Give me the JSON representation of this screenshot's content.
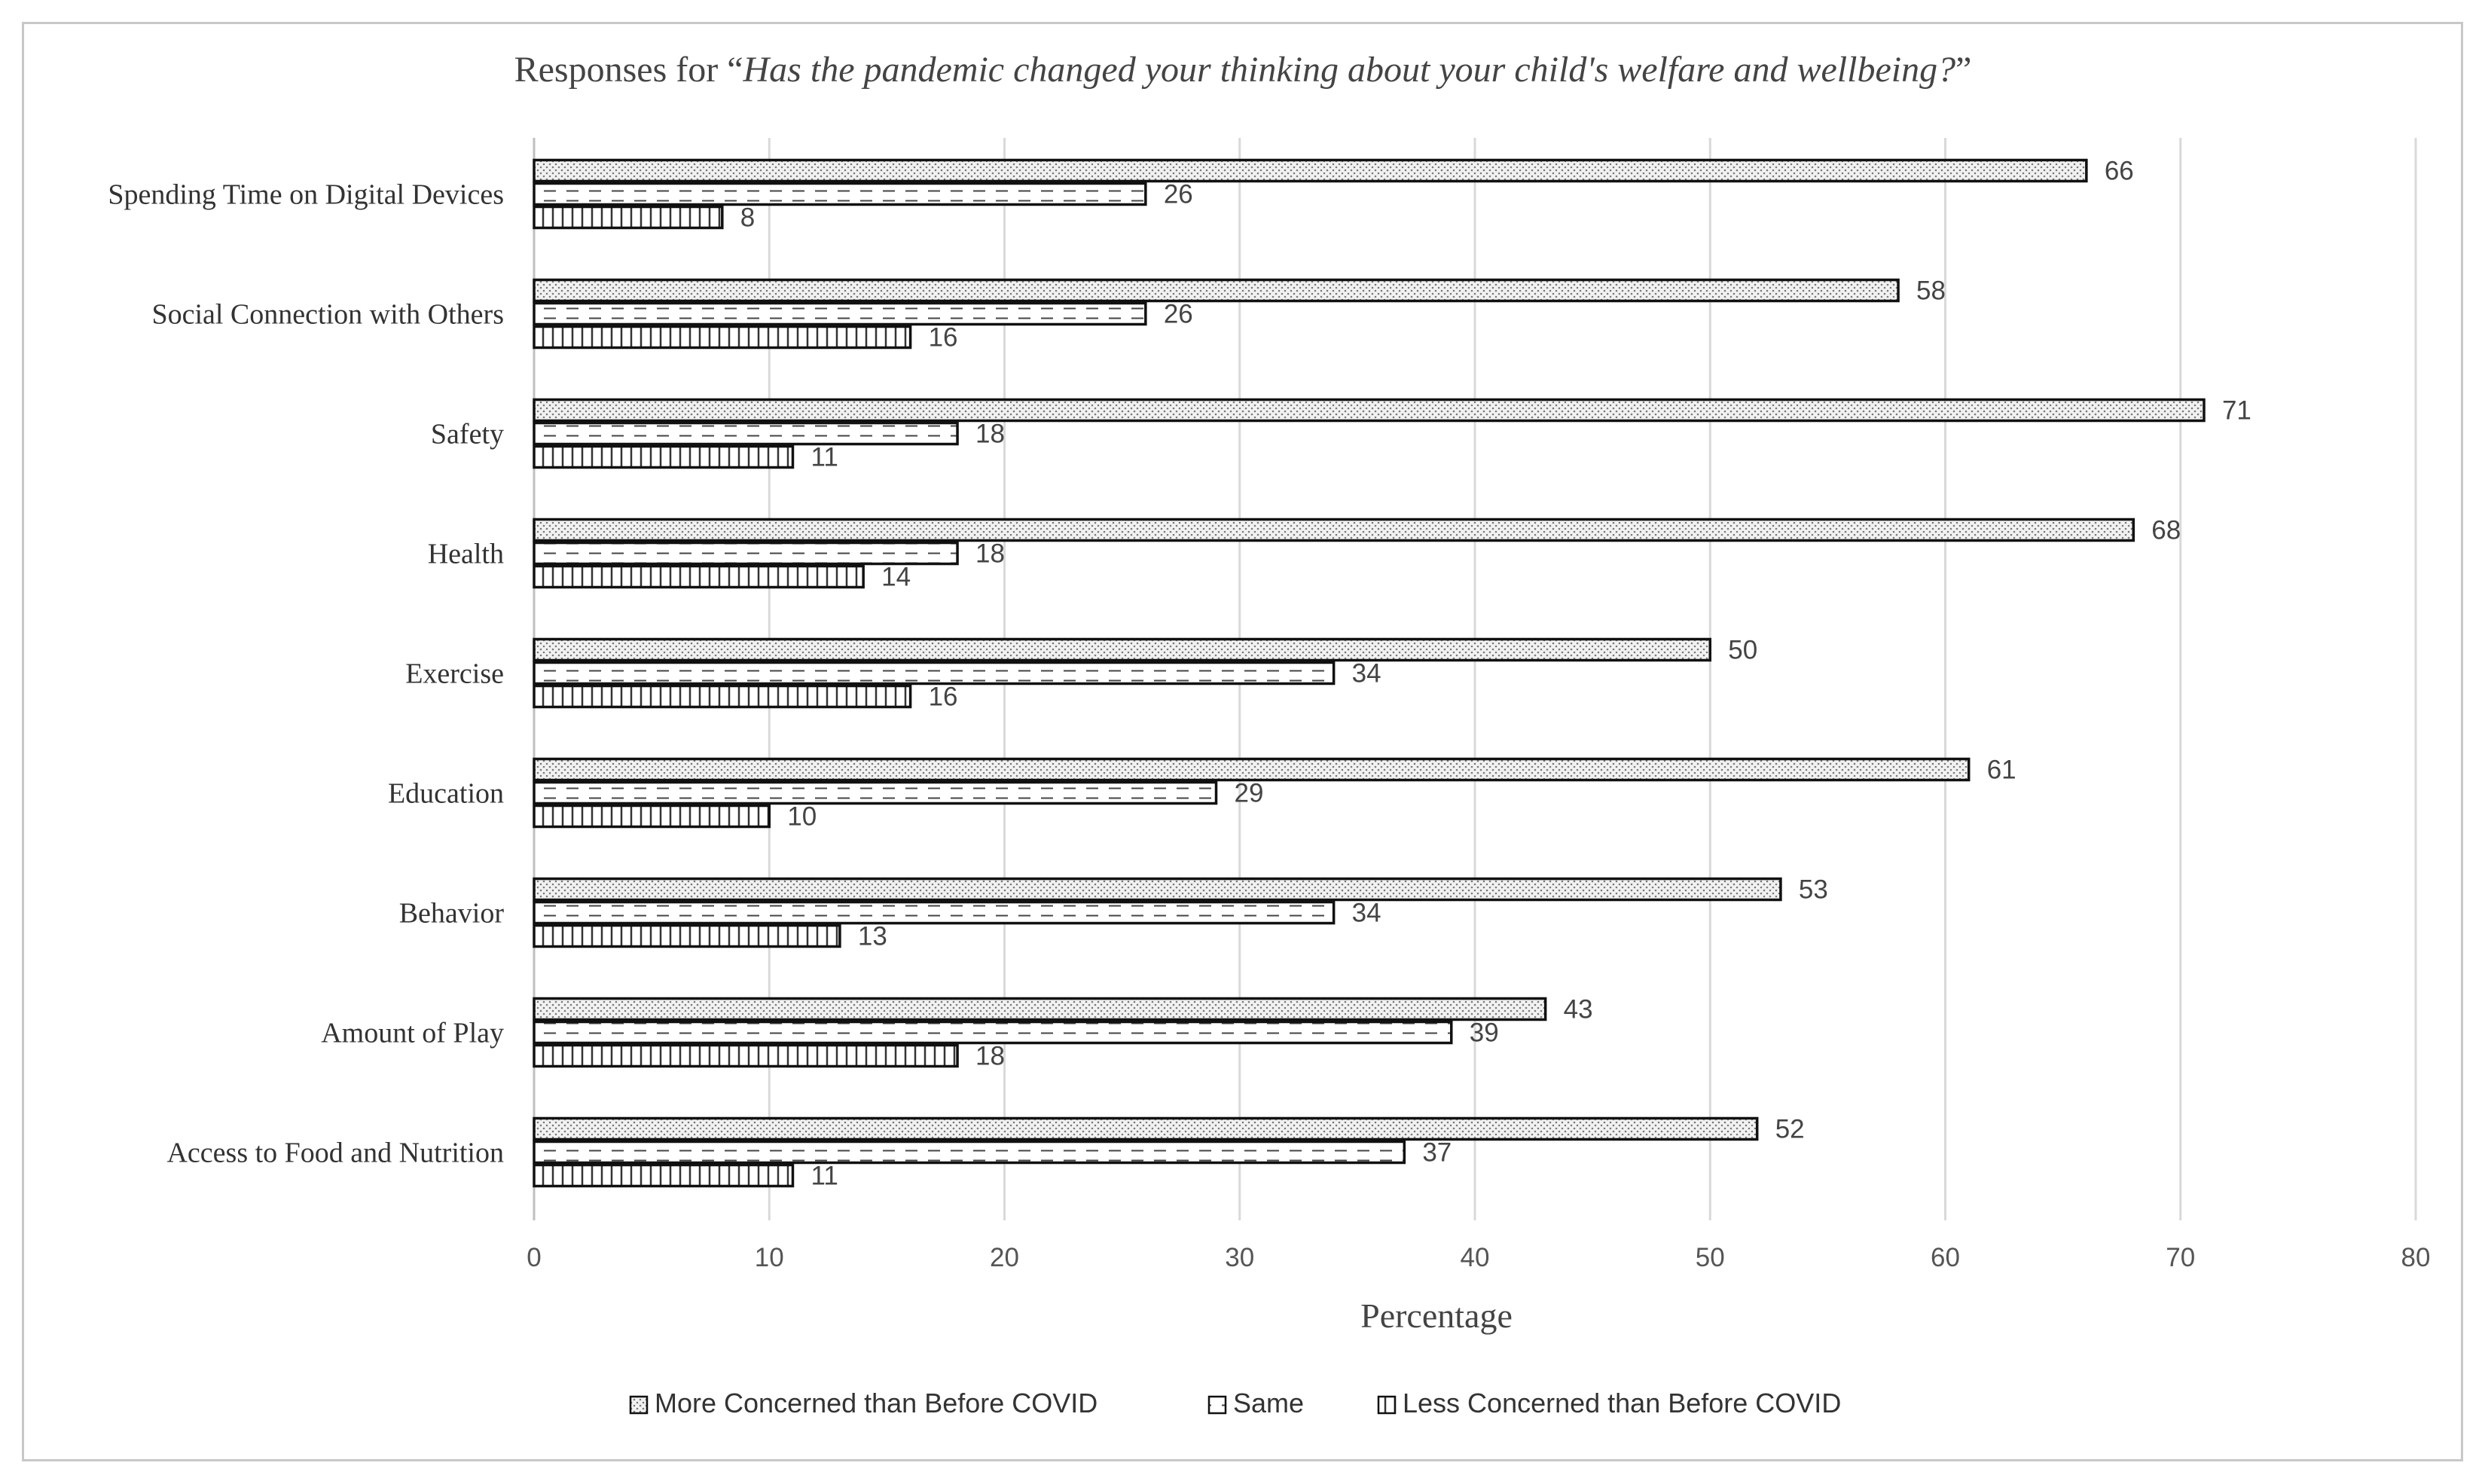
{
  "chart_data": {
    "type": "bar",
    "orientation": "horizontal",
    "title_prefix": "Responses for “",
    "title_question": "Has the pandemic changed your thinking about your child's welfare and wellbeing?",
    "title_suffix": "”",
    "xlabel": "Percentage",
    "ylabel": "",
    "xlim": [
      0,
      80
    ],
    "xticks": [
      0,
      10,
      20,
      30,
      40,
      50,
      60,
      70,
      80
    ],
    "grid": "vertical",
    "legend_position": "bottom",
    "categories": [
      "Spending Time on Digital Devices",
      "Social Connection with Others",
      "Safety",
      "Health",
      "Exercise",
      "Education",
      "Behavior",
      "Amount of Play",
      "Access to Food and Nutrition"
    ],
    "series": [
      {
        "name": "More Concerned than Before COVID",
        "pattern": "dots",
        "values": [
          66,
          58,
          71,
          68,
          50,
          61,
          53,
          43,
          52
        ]
      },
      {
        "name": "Same",
        "pattern": "dashes",
        "values": [
          26,
          26,
          18,
          18,
          34,
          29,
          34,
          39,
          37
        ]
      },
      {
        "name": "Less Concerned than Before COVID",
        "pattern": "vertical-lines",
        "values": [
          8,
          16,
          11,
          14,
          16,
          10,
          13,
          18,
          11
        ]
      }
    ],
    "colors": {
      "bar_outline": "#111111",
      "grid": "#d9d9d9",
      "frame": "#c8c8c8",
      "dots": "#7a7a7a"
    }
  }
}
